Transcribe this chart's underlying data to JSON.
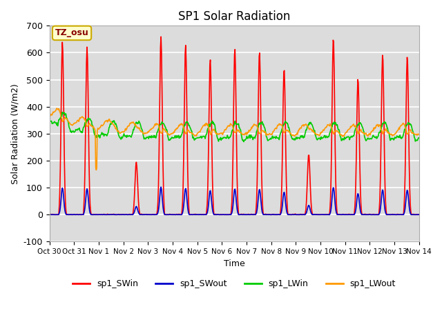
{
  "title": "SP1 Solar Radiation",
  "xlabel": "Time",
  "ylabel": "Solar Radiation (W/m2)",
  "ylim": [
    -100,
    700
  ],
  "yticks": [
    -100,
    0,
    100,
    200,
    300,
    400,
    500,
    600,
    700
  ],
  "x_tick_labels": [
    "Oct 30",
    "Oct 31",
    "Nov 1",
    "Nov 2",
    "Nov 3",
    "Nov 4",
    "Nov 5",
    "Nov 6",
    "Nov 7",
    "Nov 8",
    "Nov 9",
    "Nov 10",
    "Nov 11",
    "Nov 12",
    "Nov 13",
    "Nov 14"
  ],
  "bg_color": "#dcdcdc",
  "fig_color": "#ffffff",
  "grid_color": "#ffffff",
  "tz_label": "TZ_osu",
  "tz_bg": "#ffffcc",
  "tz_border": "#ccaa00",
  "tz_text_color": "#880000",
  "legend_entries": [
    "sp1_SWin",
    "sp1_SWout",
    "sp1_LWin",
    "sp1_LWout"
  ],
  "legend_colors": [
    "#ff0000",
    "#0000cc",
    "#00cc00",
    "#ff9900"
  ],
  "line_width": 1.2,
  "day_peaks_swi": [
    640,
    620,
    0,
    195,
    660,
    630,
    575,
    615,
    605,
    543,
    225,
    655,
    505,
    595,
    585
  ],
  "n_days": 15
}
